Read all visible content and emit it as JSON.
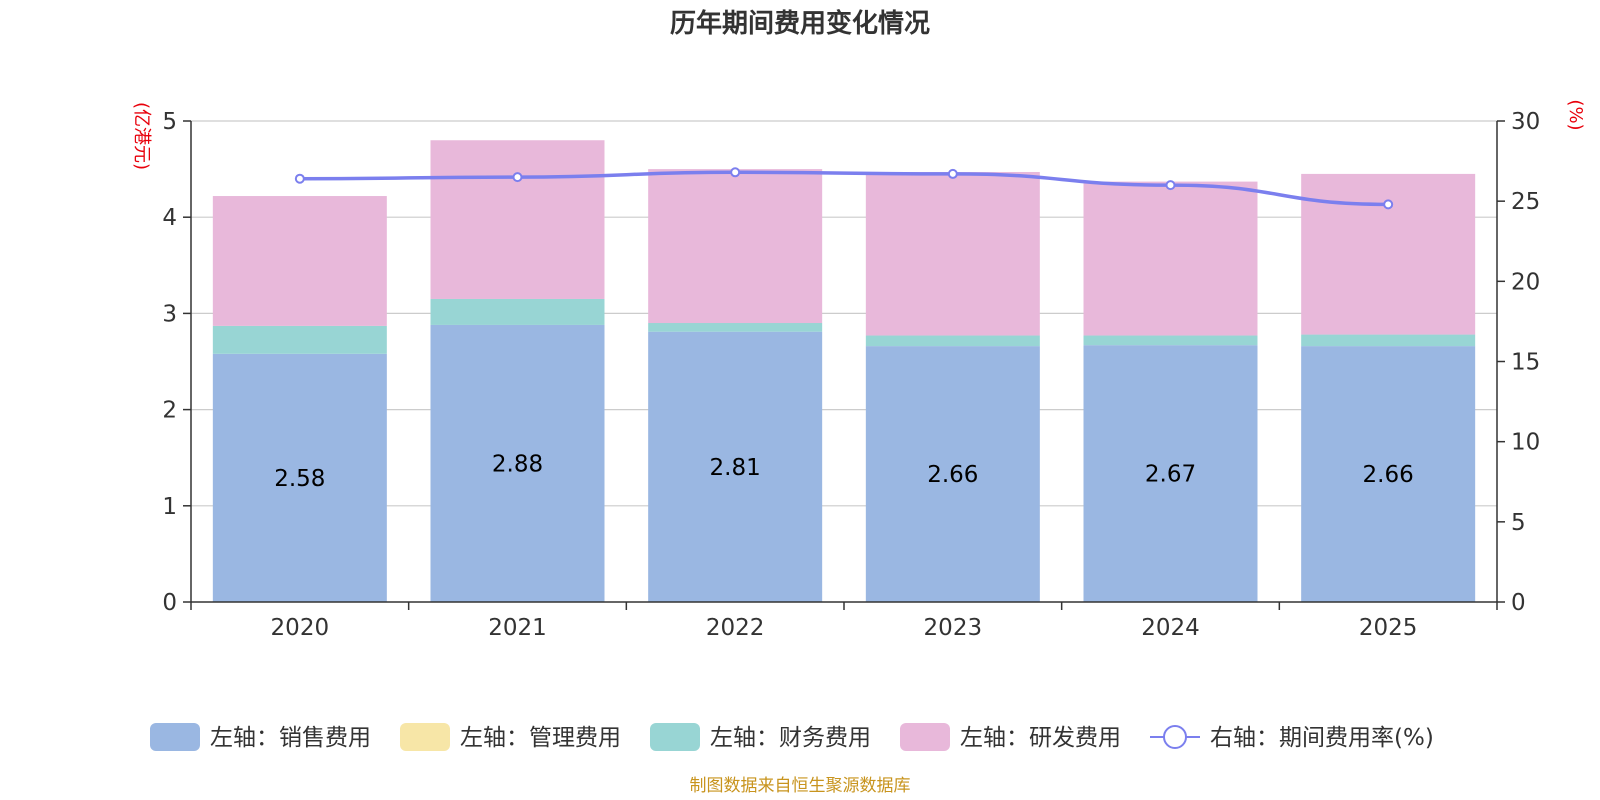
{
  "chart_data": {
    "type": "bar",
    "stacked": true,
    "title": "历年期间费用变化情况",
    "categories": [
      "2020",
      "2021",
      "2022",
      "2023",
      "2024",
      "2025"
    ],
    "left_axis": {
      "label": "(亿港元)",
      "ylim": [
        0,
        5
      ],
      "ticks": [
        0,
        1,
        2,
        3,
        4,
        5
      ]
    },
    "right_axis": {
      "label": "(%)",
      "ylim": [
        0,
        30
      ],
      "ticks": [
        0,
        5,
        10,
        15,
        20,
        25,
        30
      ]
    },
    "series": [
      {
        "name": "左轴：销售费用",
        "axis": "left",
        "kind": "bar",
        "color": "#9ab7e2",
        "values": [
          2.58,
          2.88,
          2.81,
          2.66,
          2.67,
          2.66
        ],
        "show_labels": true
      },
      {
        "name": "左轴：管理费用",
        "axis": "left",
        "kind": "bar",
        "color": "#f7e6a7",
        "values": [
          0,
          0,
          0,
          0,
          0,
          0
        ],
        "show_labels": false
      },
      {
        "name": "左轴：财务费用",
        "axis": "left",
        "kind": "bar",
        "color": "#98d5d4",
        "values": [
          0.29,
          0.27,
          0.09,
          0.11,
          0.1,
          0.12
        ],
        "show_labels": false
      },
      {
        "name": "左轴：研发费用",
        "axis": "left",
        "kind": "bar",
        "color": "#e8b8da",
        "values": [
          1.35,
          1.65,
          1.6,
          1.7,
          1.6,
          1.67
        ],
        "show_labels": false
      },
      {
        "name": "右轴：期间费用率(%)",
        "axis": "right",
        "kind": "line",
        "color": "#7b7fee",
        "values": [
          26.4,
          26.5,
          26.8,
          26.7,
          26.0,
          24.8
        ],
        "show_labels": false
      }
    ],
    "source": "制图数据来自恒生聚源数据库"
  }
}
